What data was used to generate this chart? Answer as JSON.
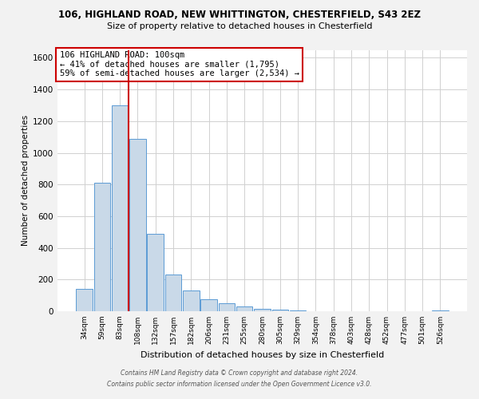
{
  "title_line1": "106, HIGHLAND ROAD, NEW WHITTINGTON, CHESTERFIELD, S43 2EZ",
  "title_line2": "Size of property relative to detached houses in Chesterfield",
  "xlabel": "Distribution of detached houses by size in Chesterfield",
  "ylabel": "Number of detached properties",
  "bin_labels": [
    "34sqm",
    "59sqm",
    "83sqm",
    "108sqm",
    "132sqm",
    "157sqm",
    "182sqm",
    "206sqm",
    "231sqm",
    "255sqm",
    "280sqm",
    "305sqm",
    "329sqm",
    "354sqm",
    "378sqm",
    "403sqm",
    "428sqm",
    "452sqm",
    "477sqm",
    "501sqm",
    "526sqm"
  ],
  "bar_values": [
    140,
    810,
    1300,
    1090,
    490,
    230,
    130,
    75,
    50,
    28,
    15,
    8,
    3,
    2,
    1,
    1,
    0,
    0,
    0,
    0,
    5
  ],
  "bar_color": "#c9d9e8",
  "bar_edge_color": "#5b9bd5",
  "vline_color": "#cc0000",
  "annotation_text": "106 HIGHLAND ROAD: 100sqm\n← 41% of detached houses are smaller (1,795)\n59% of semi-detached houses are larger (2,534) →",
  "annotation_box_color": "white",
  "annotation_box_edge_color": "#cc0000",
  "ylim": [
    0,
    1650
  ],
  "yticks": [
    0,
    200,
    400,
    600,
    800,
    1000,
    1200,
    1400,
    1600
  ],
  "footer_line1": "Contains HM Land Registry data © Crown copyright and database right 2024.",
  "footer_line2": "Contains public sector information licensed under the Open Government Licence v3.0.",
  "background_color": "#f2f2f2",
  "plot_bg_color": "#ffffff",
  "grid_color": "#d0d0d0"
}
